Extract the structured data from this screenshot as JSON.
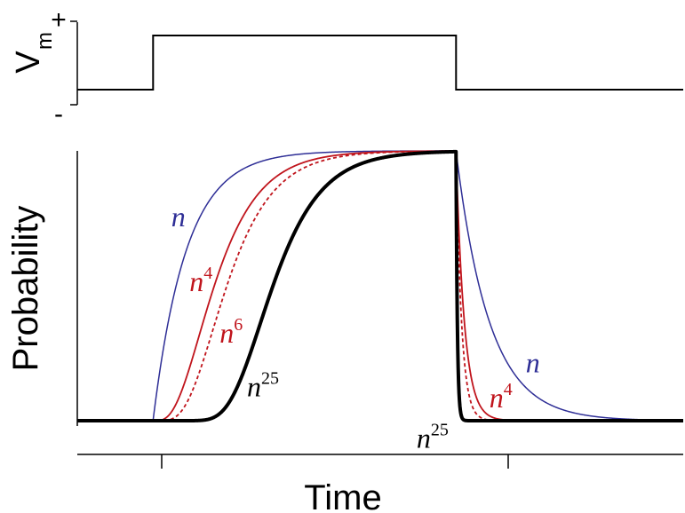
{
  "chart_data": [
    {
      "type": "line",
      "panel": "voltage",
      "ylabel_main": "V",
      "ylabel_sub": "m",
      "ytick_top": "+",
      "ytick_bottom": "-",
      "xlim": [
        0,
        10
      ],
      "ylim": [
        0,
        1
      ],
      "step_on": 1.25,
      "step_off": 6.25,
      "series": [
        {
          "x": [
            0,
            1.25,
            1.25,
            6.25,
            6.25,
            10
          ],
          "values": [
            0,
            0,
            1,
            1,
            0,
            0
          ],
          "color": "#000000"
        }
      ]
    },
    {
      "type": "line",
      "panel": "probability",
      "xlabel": "Time",
      "ylabel": "Probability",
      "xlim": [
        0,
        10
      ],
      "ylim": [
        0,
        1
      ],
      "grid": false,
      "step_on": 1.25,
      "step_off": 6.25,
      "series": [
        {
          "base": "n",
          "power": 1,
          "color": "#2e2e96",
          "style": "solid",
          "width": 1.5
        },
        {
          "base": "n",
          "power": 4,
          "color": "#c0141c",
          "style": "solid",
          "width": 1.8
        },
        {
          "base": "n",
          "power": 6,
          "color": "#c0141c",
          "style": "dotted",
          "width": 1.8
        },
        {
          "base": "n",
          "power": 25,
          "color": "#000000",
          "style": "solid",
          "width": 4
        }
      ],
      "annotations": [
        {
          "base": "n",
          "sup": "",
          "color": "#2e2e96",
          "x": 1.55,
          "y": 0.72
        },
        {
          "base": "n",
          "sup": "4",
          "color": "#c0141c",
          "x": 1.85,
          "y": 0.48
        },
        {
          "base": "n",
          "sup": "6",
          "color": "#c0141c",
          "x": 2.35,
          "y": 0.29
        },
        {
          "base": "n",
          "sup": "25",
          "color": "#000000",
          "x": 2.8,
          "y": 0.09
        },
        {
          "base": "n",
          "sup": "",
          "color": "#2e2e96",
          "x": 7.4,
          "y": 0.18
        },
        {
          "base": "n",
          "sup": "4",
          "color": "#c0141c",
          "x": 6.8,
          "y": 0.05
        },
        {
          "base": "n",
          "sup": "25",
          "color": "#000000",
          "x": 5.6,
          "y": -0.1
        }
      ]
    }
  ]
}
